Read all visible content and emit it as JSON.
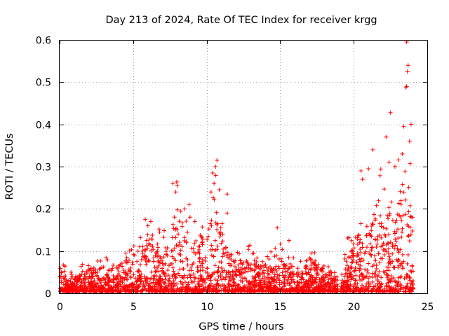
{
  "chart_data": {
    "type": "scatter",
    "title": "Day 213 of 2024, Rate Of TEC Index for receiver krgg",
    "xlabel": "GPS time / hours",
    "ylabel": "ROTI / TECUs",
    "xlim": [
      0,
      25
    ],
    "ylim": [
      0,
      0.6
    ],
    "x_ticks": [
      0,
      5,
      10,
      15,
      20,
      25
    ],
    "x_tick_labels": [
      "0",
      "5",
      "10",
      "15",
      "20",
      "25"
    ],
    "y_ticks": [
      0,
      0.1,
      0.2,
      0.3,
      0.4,
      0.5,
      0.6
    ],
    "y_tick_labels": [
      "0",
      "0.1",
      "0.2",
      "0.3",
      "0.4",
      "0.5",
      "0.6"
    ],
    "grid": true,
    "marker": "+",
    "color": "#ff0000",
    "series": [
      {
        "name": "ROTI",
        "envelope_note": "approximate upper envelope (hour, typical max ROTI) read from the dense scatter; points fill from ~0.005 to this level",
        "envelope": [
          [
            0.0,
            0.07
          ],
          [
            0.5,
            0.04
          ],
          [
            1.0,
            0.03
          ],
          [
            1.5,
            0.05
          ],
          [
            2.0,
            0.06
          ],
          [
            2.5,
            0.05
          ],
          [
            3.0,
            0.06
          ],
          [
            3.5,
            0.05
          ],
          [
            4.0,
            0.06
          ],
          [
            4.5,
            0.08
          ],
          [
            5.0,
            0.09
          ],
          [
            5.5,
            0.1
          ],
          [
            6.0,
            0.14
          ],
          [
            6.5,
            0.12
          ],
          [
            7.0,
            0.1
          ],
          [
            7.5,
            0.13
          ],
          [
            8.0,
            0.2
          ],
          [
            8.5,
            0.16
          ],
          [
            9.0,
            0.12
          ],
          [
            9.5,
            0.11
          ],
          [
            10.0,
            0.13
          ],
          [
            10.5,
            0.2
          ],
          [
            11.0,
            0.15
          ],
          [
            11.5,
            0.1
          ],
          [
            12.0,
            0.08
          ],
          [
            12.5,
            0.07
          ],
          [
            13.0,
            0.08
          ],
          [
            13.5,
            0.07
          ],
          [
            14.0,
            0.06
          ],
          [
            14.5,
            0.07
          ],
          [
            15.0,
            0.08
          ],
          [
            15.5,
            0.07
          ],
          [
            16.0,
            0.06
          ],
          [
            16.5,
            0.05
          ],
          [
            17.0,
            0.09
          ],
          [
            17.5,
            0.07
          ],
          [
            18.0,
            0.05
          ],
          [
            18.5,
            0.05
          ],
          [
            18.9,
            0.04
          ],
          [
            19.0,
            0.0
          ],
          [
            19.3,
            0.08
          ],
          [
            19.8,
            0.1
          ],
          [
            20.2,
            0.15
          ],
          [
            20.7,
            0.13
          ],
          [
            21.2,
            0.18
          ],
          [
            21.7,
            0.2
          ],
          [
            22.2,
            0.22
          ],
          [
            22.7,
            0.18
          ],
          [
            23.2,
            0.25
          ],
          [
            23.6,
            0.3
          ],
          [
            24.0,
            0.2
          ]
        ],
        "highlights": [
          [
            23.6,
            0.595
          ],
          [
            23.7,
            0.54
          ],
          [
            23.65,
            0.525
          ],
          [
            23.6,
            0.49
          ],
          [
            23.55,
            0.487
          ],
          [
            22.5,
            0.428
          ],
          [
            23.9,
            0.4
          ],
          [
            23.4,
            0.395
          ],
          [
            23.8,
            0.36
          ],
          [
            23.3,
            0.33
          ],
          [
            21.3,
            0.34
          ],
          [
            22.2,
            0.37
          ],
          [
            22.4,
            0.31
          ],
          [
            22.8,
            0.3
          ],
          [
            20.5,
            0.29
          ],
          [
            21.0,
            0.295
          ],
          [
            20.6,
            0.27
          ],
          [
            7.7,
            0.26
          ],
          [
            8.0,
            0.255
          ],
          [
            7.9,
            0.24
          ],
          [
            10.7,
            0.315
          ],
          [
            10.6,
            0.3
          ],
          [
            10.4,
            0.285
          ],
          [
            10.5,
            0.26
          ],
          [
            10.3,
            0.24
          ],
          [
            11.4,
            0.235
          ],
          [
            8.8,
            0.21
          ],
          [
            8.5,
            0.2
          ],
          [
            11.4,
            0.19
          ],
          [
            9.2,
            0.17
          ],
          [
            14.8,
            0.155
          ],
          [
            15.6,
            0.125
          ],
          [
            17.1,
            0.095
          ],
          [
            6.2,
            0.17
          ],
          [
            6.0,
            0.16
          ],
          [
            6.8,
            0.145
          ],
          [
            13.8,
            0.075
          ],
          [
            12.1,
            0.097
          ],
          [
            13.2,
            0.095
          ],
          [
            4.5,
            0.095
          ]
        ]
      }
    ]
  }
}
